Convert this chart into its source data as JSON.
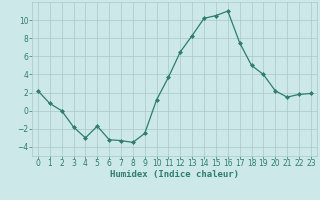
{
  "x": [
    0,
    1,
    2,
    3,
    4,
    5,
    6,
    7,
    8,
    9,
    10,
    11,
    12,
    13,
    14,
    15,
    16,
    17,
    18,
    19,
    20,
    21,
    22,
    23
  ],
  "y": [
    2.2,
    0.8,
    0.0,
    -1.8,
    -3.0,
    -1.7,
    -3.2,
    -3.3,
    -3.5,
    -2.5,
    1.2,
    3.7,
    6.5,
    8.3,
    10.2,
    10.5,
    11.0,
    7.5,
    5.0,
    4.0,
    2.2,
    1.5,
    1.8,
    1.9
  ],
  "line_color": "#2e7d6e",
  "marker": "D",
  "marker_size": 2.0,
  "linewidth": 0.9,
  "bg_color": "#cce8e8",
  "grid_color": "#aac8c8",
  "xlabel": "Humidex (Indice chaleur)",
  "xlim": [
    -0.5,
    23.5
  ],
  "ylim": [
    -5,
    12
  ],
  "xticks": [
    0,
    1,
    2,
    3,
    4,
    5,
    6,
    7,
    8,
    9,
    10,
    11,
    12,
    13,
    14,
    15,
    16,
    17,
    18,
    19,
    20,
    21,
    22,
    23
  ],
  "yticks": [
    -4,
    -2,
    0,
    2,
    4,
    6,
    8,
    10
  ],
  "xlabel_fontsize": 6.5,
  "tick_fontsize": 5.5,
  "tick_color": "#2e7d6e"
}
